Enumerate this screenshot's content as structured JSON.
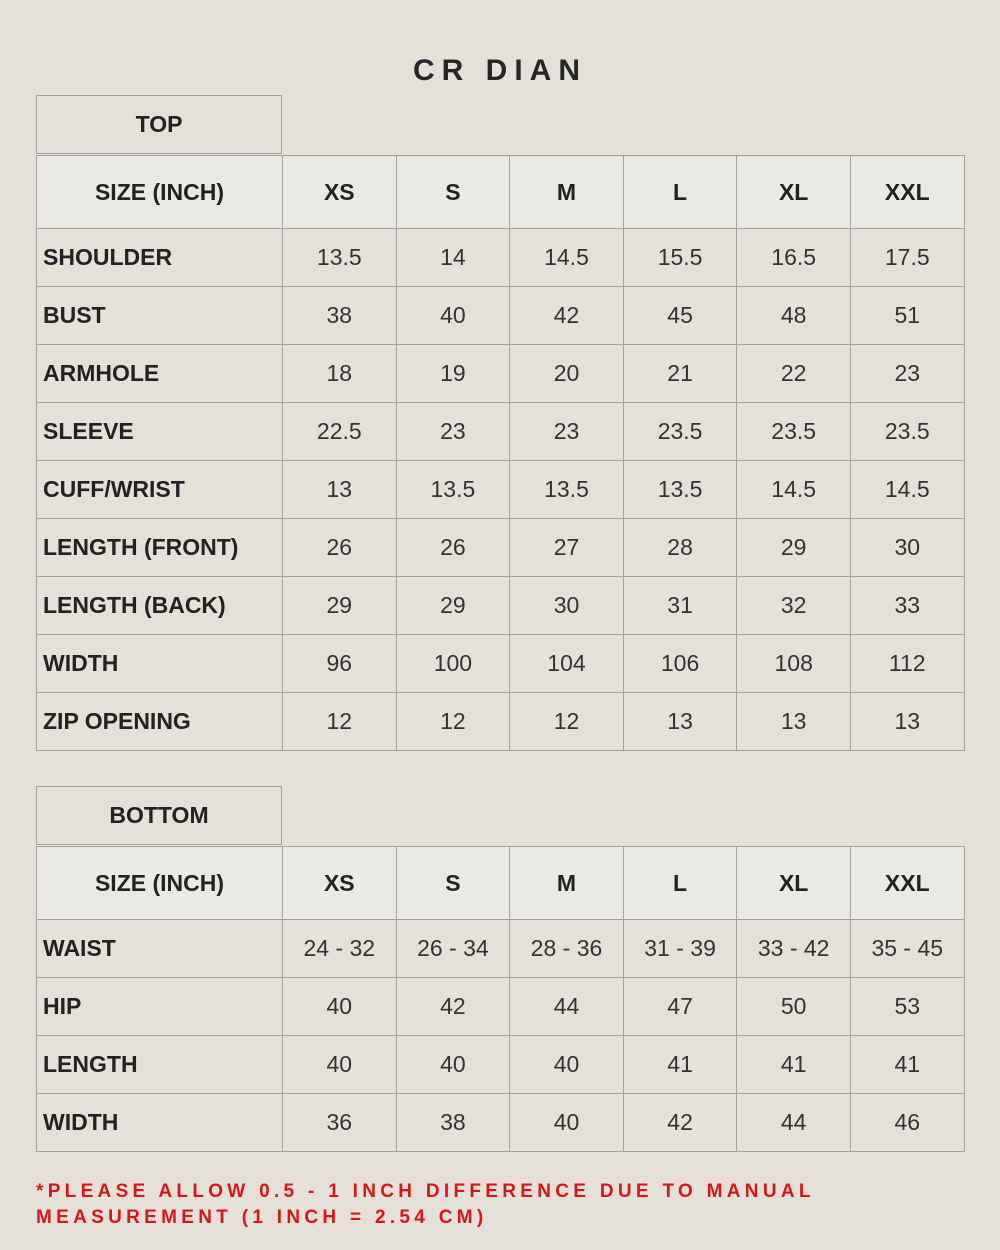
{
  "brand": "CR DIAN",
  "top": {
    "label": "TOP",
    "header": [
      "SIZE (INCH)",
      "XS",
      "S",
      "M",
      "L",
      "XL",
      "XXL"
    ],
    "rows": [
      [
        "SHOULDER",
        "13.5",
        "14",
        "14.5",
        "15.5",
        "16.5",
        "17.5"
      ],
      [
        "BUST",
        "38",
        "40",
        "42",
        "45",
        "48",
        "51"
      ],
      [
        "ARMHOLE",
        "18",
        "19",
        "20",
        "21",
        "22",
        "23"
      ],
      [
        "SLEEVE",
        "22.5",
        "23",
        "23",
        "23.5",
        "23.5",
        "23.5"
      ],
      [
        "CUFF/WRIST",
        "13",
        "13.5",
        "13.5",
        "13.5",
        "14.5",
        "14.5"
      ],
      [
        "LENGTH (FRONT)",
        "26",
        "26",
        "27",
        "28",
        "29",
        "30"
      ],
      [
        "LENGTH (BACK)",
        "29",
        "29",
        "30",
        "31",
        "32",
        "33"
      ],
      [
        "WIDTH",
        "96",
        "100",
        "104",
        "106",
        "108",
        "112"
      ],
      [
        "ZIP OPENING",
        "12",
        "12",
        "12",
        "13",
        "13",
        "13"
      ]
    ]
  },
  "bottom": {
    "label": "BOTTOM",
    "header": [
      "SIZE (INCH)",
      "XS",
      "S",
      "M",
      "L",
      "XL",
      "XXL"
    ],
    "rows": [
      [
        "WAIST",
        "24 - 32",
        "26 - 34",
        "28 - 36",
        "31 - 39",
        "33 - 42",
        "35 - 45"
      ],
      [
        "HIP",
        "40",
        "42",
        "44",
        "47",
        "50",
        "53"
      ],
      [
        "LENGTH",
        "40",
        "40",
        "40",
        "41",
        "41",
        "41"
      ],
      [
        "WIDTH",
        "36",
        "38",
        "40",
        "42",
        "44",
        "46"
      ]
    ]
  },
  "note": {
    "line1": "*PLEASE ALLOW 0.5 - 1 INCH DIFFERENCE DUE TO MANUAL",
    "line2": "MEASUREMENT (1 INCH = 2.54 CM)"
  },
  "colors": {
    "background": "#e5e0d8",
    "header_row": "#ebe9e5",
    "note": "#d8161a",
    "border": "#a5a29d"
  }
}
